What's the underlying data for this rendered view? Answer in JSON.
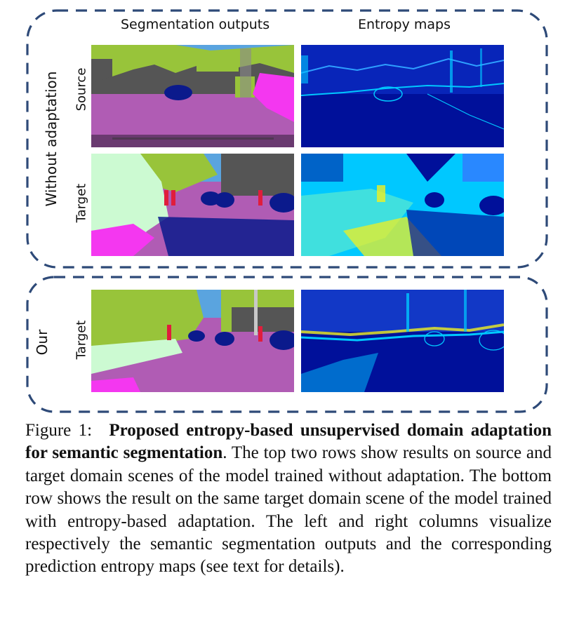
{
  "columns": {
    "segmentation": "Segmentation outputs",
    "entropy": "Entropy maps"
  },
  "groups": {
    "without": "Without adaptation",
    "ours": "Our"
  },
  "rows": {
    "source": "Source",
    "target": "Target",
    "ours_target": "Target"
  },
  "caption": {
    "label": "Figure 1:",
    "bold": "Proposed entropy-based unsupervised domain adaptation for semantic segmentation",
    "body": ". The top two rows show results on source and target domain scenes of the model trained without adaptation. The bottom row shows the result on the same target domain scene of the model trained with entropy-based adaptation. The left and right columns visualize respectively the semantic segmentation outputs and the corresponding prediction entropy maps (see text for details)."
  },
  "colors": {
    "box_dash": "#2e4a78",
    "road": "#b05cb4",
    "sidewalk": "#f437f0",
    "vegetation": "#98c43a",
    "building": "#555555",
    "sky": "#5aa4df",
    "car": "#0b1a8c",
    "terrain": "#ccfad2",
    "person": "#e01d3c",
    "entropy_low": "#00109a",
    "entropy_mid": "#00c8ff",
    "entropy_high": "#f0f020"
  }
}
